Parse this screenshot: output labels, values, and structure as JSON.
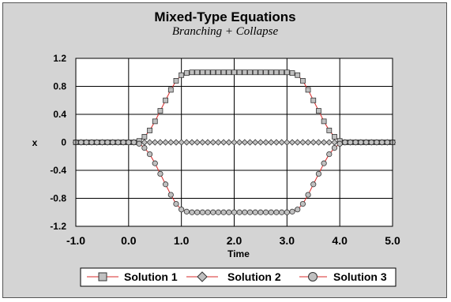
{
  "chart_data": {
    "type": "line",
    "title": "Mixed-Type Equations",
    "subtitle": "Branching + Collapse",
    "xlabel": "Time",
    "ylabel": "x",
    "xlim": [
      -1.0,
      5.0
    ],
    "ylim": [
      -1.2,
      1.2
    ],
    "x_tick_labels": [
      "-1.0",
      "0.0",
      "1.0",
      "2.0",
      "3.0",
      "4.0",
      "5.0"
    ],
    "y_tick_labels": [
      "1.2",
      "0.8",
      "0.4",
      "0",
      "-0.4",
      "-0.8",
      "-1.2"
    ],
    "grid": true,
    "legend_position": "bottom",
    "x": [
      -1.0,
      -0.9,
      -0.8,
      -0.7,
      -0.6,
      -0.5,
      -0.4,
      -0.3,
      -0.2,
      -0.1,
      0.0,
      0.1,
      0.2,
      0.3,
      0.4,
      0.5,
      0.6,
      0.7,
      0.8,
      0.9,
      1.0,
      1.1,
      1.2,
      1.3,
      1.4,
      1.5,
      1.6,
      1.7,
      1.8,
      1.9,
      2.0,
      2.1,
      2.2,
      2.3,
      2.4,
      2.5,
      2.6,
      2.7,
      2.8,
      2.9,
      3.0,
      3.1,
      3.2,
      3.3,
      3.4,
      3.5,
      3.6,
      3.7,
      3.8,
      3.9,
      4.0,
      4.1,
      4.2,
      4.3,
      4.4,
      4.5,
      4.6,
      4.7,
      4.8,
      4.9,
      5.0
    ],
    "series": [
      {
        "name": "Solution 1",
        "marker": "square",
        "values": [
          0,
          0,
          0,
          0,
          0,
          0,
          0,
          0,
          0,
          0,
          0,
          0,
          0.02,
          0.08,
          0.17,
          0.3,
          0.45,
          0.6,
          0.75,
          0.88,
          0.96,
          0.99,
          1.0,
          1.0,
          1.0,
          1.0,
          1.0,
          1.0,
          1.0,
          1.0,
          1.0,
          1.0,
          1.0,
          1.0,
          1.0,
          1.0,
          1.0,
          1.0,
          1.0,
          1.0,
          1.0,
          0.99,
          0.96,
          0.88,
          0.75,
          0.6,
          0.45,
          0.3,
          0.17,
          0.08,
          0.02,
          0,
          0,
          0,
          0,
          0,
          0,
          0,
          0,
          0,
          0
        ]
      },
      {
        "name": "Solution 2",
        "marker": "diamond",
        "values": [
          0,
          0,
          0,
          0,
          0,
          0,
          0,
          0,
          0,
          0,
          0,
          0,
          0,
          0,
          0,
          0,
          0,
          0,
          0,
          0,
          0,
          0,
          0,
          0,
          0,
          0,
          0,
          0,
          0,
          0,
          0,
          0,
          0,
          0,
          0,
          0,
          0,
          0,
          0,
          0,
          0,
          0,
          0,
          0,
          0,
          0,
          0,
          0,
          0,
          0,
          0,
          0,
          0,
          0,
          0,
          0,
          0,
          0,
          0,
          0,
          0
        ]
      },
      {
        "name": "Solution 3",
        "marker": "circle",
        "values": [
          0,
          0,
          0,
          0,
          0,
          0,
          0,
          0,
          0,
          0,
          0,
          0,
          -0.02,
          -0.08,
          -0.17,
          -0.3,
          -0.45,
          -0.6,
          -0.75,
          -0.88,
          -0.96,
          -0.99,
          -1.0,
          -1.0,
          -1.0,
          -1.0,
          -1.0,
          -1.0,
          -1.0,
          -1.0,
          -1.0,
          -1.0,
          -1.0,
          -1.0,
          -1.0,
          -1.0,
          -1.0,
          -1.0,
          -1.0,
          -1.0,
          -1.0,
          -0.99,
          -0.96,
          -0.88,
          -0.75,
          -0.6,
          -0.45,
          -0.3,
          -0.17,
          -0.08,
          -0.02,
          0,
          0,
          0,
          0,
          0,
          0,
          0,
          0,
          0,
          0
        ]
      }
    ],
    "colors": {
      "line": "#d82828",
      "marker_fill": "#c0c0c0",
      "marker_stroke": "#333333",
      "grid": "#000000",
      "plot_background": "#ffffff",
      "chart_background": "#d4d4d4"
    }
  }
}
